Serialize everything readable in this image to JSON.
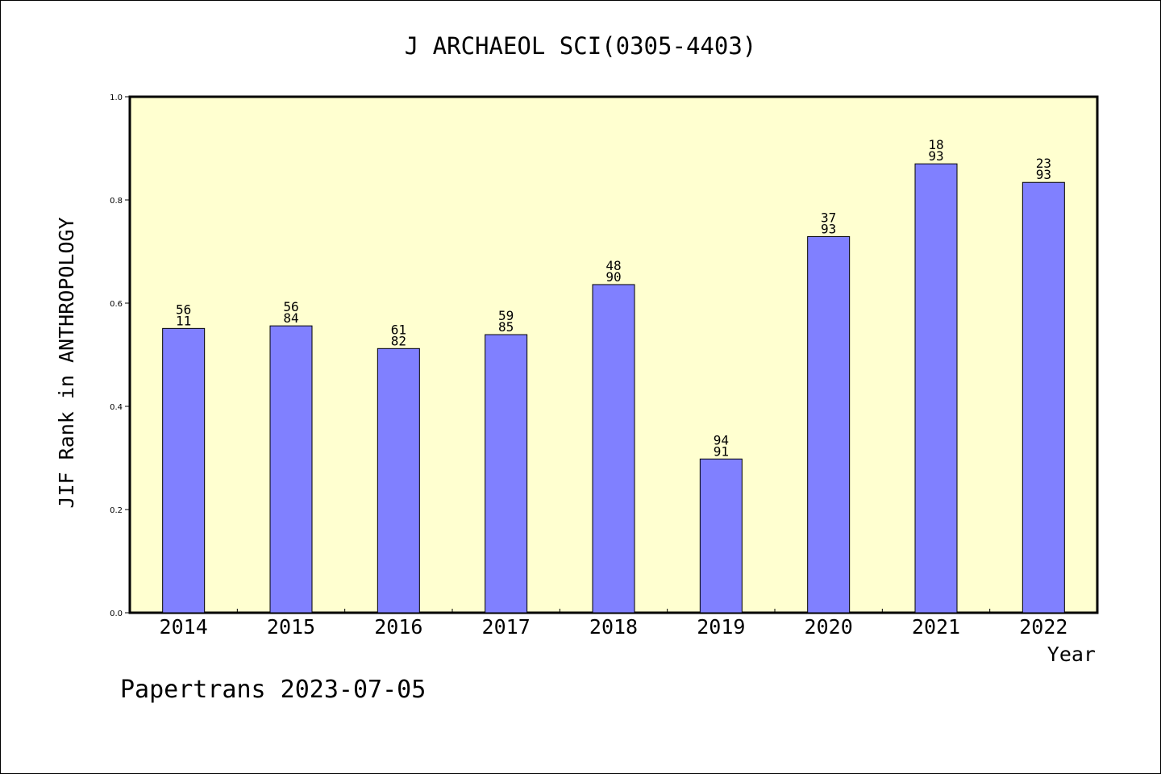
{
  "chart_data": {
    "type": "bar",
    "title": "J ARCHAEOL SCI(0305-4403)",
    "xlabel": "Year",
    "ylabel": "JIF Rank in ANTHROPOLOGY",
    "categories": [
      "2014",
      "2015",
      "2016",
      "2017",
      "2018",
      "2019",
      "2020",
      "2021",
      "2022"
    ],
    "values": [
      0.551,
      0.556,
      0.512,
      0.539,
      0.636,
      0.298,
      0.729,
      0.87,
      0.834
    ],
    "bar_labels": [
      [
        "56",
        "11"
      ],
      [
        "56",
        "84"
      ],
      [
        "61",
        "82"
      ],
      [
        "59",
        "85"
      ],
      [
        "48",
        "90"
      ],
      [
        "94",
        "91"
      ],
      [
        "37",
        "93"
      ],
      [
        "18",
        "93"
      ],
      [
        "23",
        "93"
      ]
    ],
    "yticks": [
      "0.0",
      "0.2",
      "0.4",
      "0.6",
      "0.8",
      "1.0"
    ],
    "ylim": [
      0,
      1.0
    ],
    "grid": false,
    "footer": "Papertrans 2023-07-05",
    "colors": {
      "bar": "#8080ff",
      "plot_background": "#ffffd0",
      "axes": "#000000"
    }
  }
}
